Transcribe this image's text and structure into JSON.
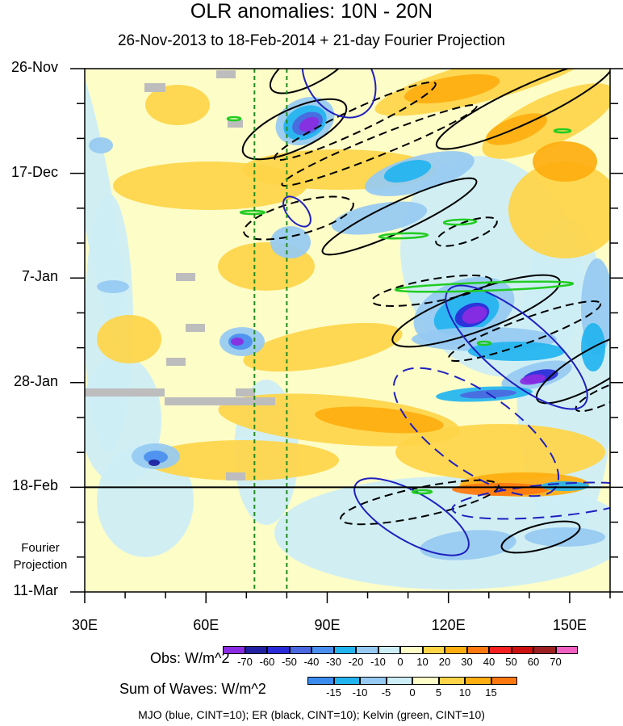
{
  "chart_data": {
    "type": "heatmap",
    "title": "OLR anomalies: 10N - 20N",
    "subtitle": "26-Nov-2013 to 18-Feb-2014 + 21-day Fourier Projection",
    "x_ticks": [
      {
        "value": 30,
        "label": "30E"
      },
      {
        "value": 60,
        "label": "60E"
      },
      {
        "value": 90,
        "label": "90E"
      },
      {
        "value": 120,
        "label": "120E"
      },
      {
        "value": 150,
        "label": "150E"
      }
    ],
    "xlim": [
      30,
      160
    ],
    "y_ticks": [
      {
        "day": 0,
        "label": "26-Nov"
      },
      {
        "day": 21,
        "label": "17-Dec"
      },
      {
        "day": 42,
        "label": "7-Jan"
      },
      {
        "day": 63,
        "label": "28-Jan"
      },
      {
        "day": 84,
        "label": "18-Feb"
      },
      {
        "day": 105,
        "label": "11-Mar"
      }
    ],
    "ylim_days": [
      0,
      105
    ],
    "projection_start_day": 84,
    "projection_label_line1": "Fourier",
    "projection_label_line2": "Projection",
    "reference_lines_lon": [
      72,
      80
    ],
    "obs_colorbar": {
      "title": "Obs: W/m^2",
      "levels": [
        "-70",
        "-60",
        "-50",
        "-40",
        "-30",
        "-20",
        "-10",
        "0",
        "10",
        "20",
        "30",
        "40",
        "50",
        "60",
        "70"
      ],
      "colors": [
        "#8b2be2",
        "#2020a0",
        "#2a2ad8",
        "#4a68e0",
        "#4a8ff0",
        "#22b4f0",
        "#96caf2",
        "#cdeef6",
        "#fdfdc8",
        "#fed548",
        "#feae10",
        "#fe7810",
        "#f52020",
        "#cc1010",
        "#9c2020",
        "#f060c0"
      ]
    },
    "wave_colorbar": {
      "title": "Sum of Waves: W/m^2",
      "levels": [
        "-15",
        "-10",
        "-5",
        "0",
        "5",
        "10",
        "15"
      ],
      "colors": [
        "#3c8cf0",
        "#22b4f0",
        "#96caf2",
        "#cdeef6",
        "#fdfdc8",
        "#fed548",
        "#feae10",
        "#fe7810"
      ]
    },
    "wave_contours": "MJO (blue, CINT=10); ER (black, CINT=10); Kelvin (green, CINT=10)",
    "wave_colors": {
      "mjo": "#2020c0",
      "er": "#000000",
      "kelvin": "#22cc22"
    },
    "features": {
      "negative_anomaly_centers": [
        {
          "lon": 86,
          "day": 11,
          "value": -70
        },
        {
          "lon": 126,
          "day": 48,
          "value": -70
        },
        {
          "lon": 142,
          "day": 61,
          "value": -70
        },
        {
          "lon": 68,
          "day": 54,
          "value": -60
        },
        {
          "lon": 47,
          "day": 79,
          "value": -50
        }
      ],
      "positive_anomaly_centers": [
        {
          "lon": 145,
          "day": 3,
          "value": 30
        },
        {
          "lon": 100,
          "day": 14,
          "value": 20
        },
        {
          "lon": 138,
          "day": 84,
          "value": 40
        }
      ]
    }
  }
}
